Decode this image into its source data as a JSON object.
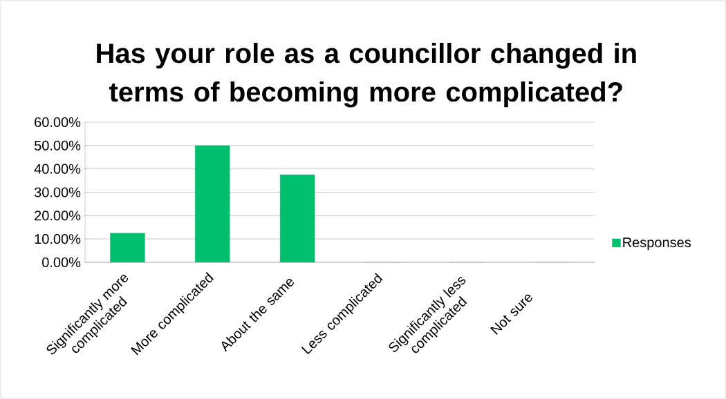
{
  "chart_data": {
    "type": "bar",
    "title": "Has your role as a councillor changed in terms of becoming more complicated?",
    "categories": [
      "Significantly more complicated",
      "More complicated",
      "About the same",
      "Less complicated",
      "Significantly less complicated",
      "Not sure"
    ],
    "series": [
      {
        "name": "Responses",
        "color": "#00bf6f",
        "values": [
          12.5,
          50,
          37.5,
          0,
          0,
          0
        ]
      }
    ],
    "ylim": [
      0,
      60
    ],
    "yticks": [
      {
        "value": 0,
        "label": "0.00%"
      },
      {
        "value": 10,
        "label": "10.00%"
      },
      {
        "value": 20,
        "label": "20.00%"
      },
      {
        "value": 30,
        "label": "30.00%"
      },
      {
        "value": 40,
        "label": "40.00%"
      },
      {
        "value": 50,
        "label": "50.00%"
      },
      {
        "value": 60,
        "label": "60.00%"
      }
    ],
    "grid": "y",
    "legend": "right"
  }
}
